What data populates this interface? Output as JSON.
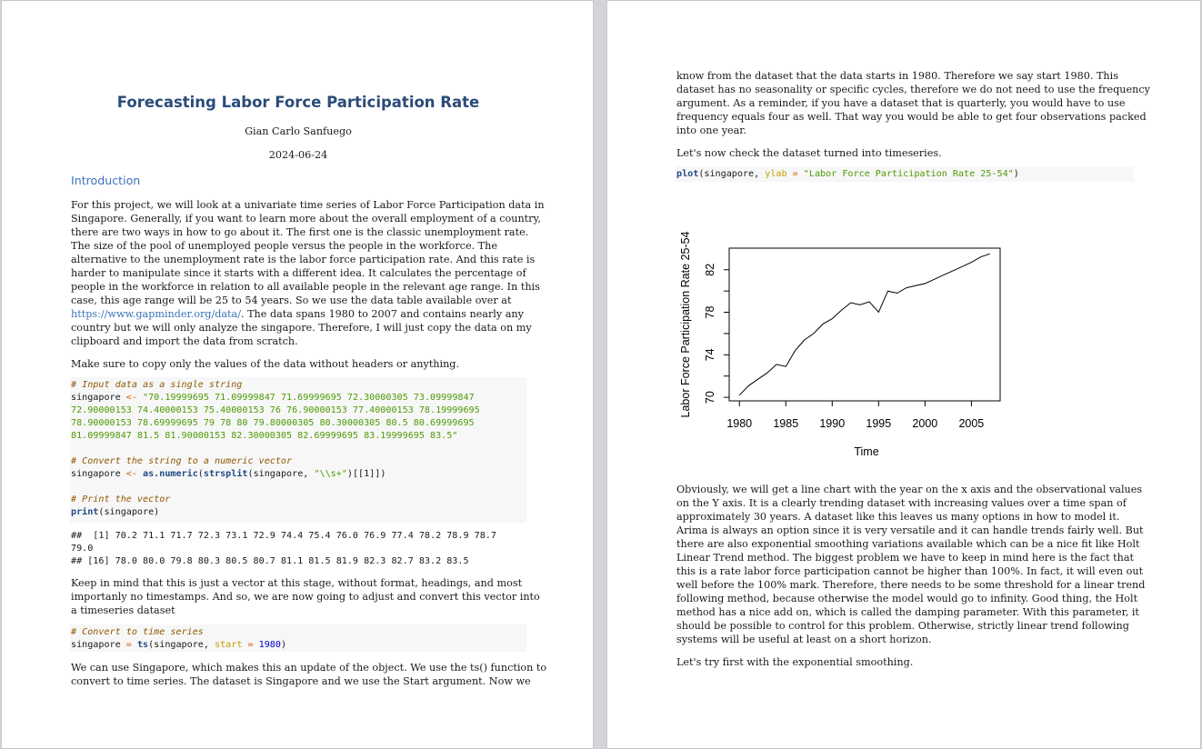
{
  "document": {
    "title": "Forecasting Labor Force Participation Rate",
    "author": "Gian Carlo Sanfuego",
    "date": "2024-06-24",
    "section_heading": "Introduction",
    "intro_lines": [
      "For this project, we will look at a univariate time series of Labor Force Participation data in",
      "Singapore. Generally, if you want to learn more about the overall employment of a country,",
      "there are two ways in how to go about it. The first one is the classic unemployment rate.",
      "The size of the pool of unemployed people versus the people in the workforce. The",
      "alternative to the unemployment rate is the labor force participation rate. And this rate is",
      "harder to manipulate since it starts with a different idea. It calculates the percentage of",
      "people in the workforce in relation to all available people in the relevant age range. In this",
      "case, this age range will be 25 to 54 years. So we use the data table available over at"
    ],
    "link_text": "https://www.gapminder.org/data/",
    "link_line_rest": ". The data spans 1980 to 2007 and contains nearly any",
    "intro_lines_after": [
      "country but we will only analyze the singapore. Therefore, I will just copy the data on my",
      "clipboard and import the data from scratch."
    ],
    "copy_instruction": "Make sure to copy only the values of the data without headers or anything.",
    "code1": {
      "comment_input": "# Input data as a single string",
      "assign_var": "singapore",
      "assign_op": "<-",
      "string_lines": [
        "\"70.19999695 71.09999847 71.69999695 72.30000305 73.09999847",
        "72.90000153 74.40000153 75.40000153 76 76.90000153 77.40000153 78.19999695",
        "78.90000153 78.69999695 79 78 80 79.80000305 80.30000305 80.5 80.69999695",
        "81.09999847 81.5 81.90000153 82.30000305 82.69999695 83.19999695 83.5\""
      ],
      "comment_convert": "# Convert the string to a numeric vector",
      "conv_fn1": "as.numeric",
      "conv_fn2": "strsplit",
      "conv_arg": "(singapore, ",
      "conv_sep": "\"\\\\s+\"",
      "conv_end": ")[[1]])",
      "comment_print": "# Print the vector",
      "print_fn": "print",
      "print_arg": "(singapore)"
    },
    "output_lines": [
      "##  [1] 70.2 71.1 71.7 72.3 73.1 72.9 74.4 75.4 76.0 76.9 77.4 78.2 78.9 78.7",
      "79.0",
      "## [16] 78.0 80.0 79.8 80.3 80.5 80.7 81.1 81.5 81.9 82.3 82.7 83.2 83.5"
    ],
    "vector_note_lines": [
      "Keep in mind that this is just a vector at this stage, without format, headings, and most",
      "importanly no timestamps. And so, we are now going to adjust and convert this vector into",
      "a timeseries dataset"
    ],
    "code2": {
      "comment": "# Convert to time series",
      "var": "singapore",
      "op": "=",
      "fn": "ts",
      "arg": "(singapore, ",
      "argname": "start",
      "num": "1980",
      "end": ")"
    },
    "ts_note_lines": [
      "We can use Singapore, which makes this an update of the object. We use the ts() function to",
      "convert to time series. The dataset is Singapore and we use the Start argument. Now we"
    ],
    "page2_lines": [
      "know from the dataset that the data starts in 1980. Therefore we say start 1980. This",
      "dataset has no seasonality or specific cycles, therefore we do not need to use the frequency",
      "argument. As a reminder, if you have a dataset that is quarterly, you would have to use",
      "frequency equals four as well. That way you would be able to get four observations packed",
      "into one year."
    ],
    "check_line": "Let's now check the dataset turned into timeseries.",
    "code3": {
      "fn": "plot",
      "arg": "(singapore, ",
      "argname": "ylab",
      "op": "=",
      "str": "\"Labor Force Participation Rate 25-54\"",
      "end": ")"
    },
    "analysis_lines": [
      "Obviously, we will get a line chart with the year on the x axis and the observational values",
      "on the Y axis. It is a clearly trending dataset with increasing values over a time span of",
      "approximately 30 years. A dataset like this leaves us many options in how to model it.",
      "Arima is always an option since it is very versatile and it can handle trends fairly well. But",
      "there are also exponential smoothing variations available which can be a nice fit like Holt",
      "Linear Trend method. The biggest problem we have to keep in mind here is the fact that",
      "this is a rate labor force participation cannot be higher than 100%. In fact, it will even out",
      "well before the 100% mark. Therefore, there needs to be some threshold for a linear trend",
      "following method, because otherwise the model would go to infinity. Good thing, the Holt",
      "method has a nice add on, which is called the damping parameter. With this parameter, it",
      "should be possible to control for this problem. Otherwise, strictly linear trend following",
      "systems will be useful at least on a short horizon."
    ],
    "final_line": "Let's try first with the exponential smoothing."
  },
  "chart_data": {
    "type": "line",
    "xlabel": "Time",
    "ylabel": "Labor Force Participation Rate 25-54",
    "x": [
      1980,
      1981,
      1982,
      1983,
      1984,
      1985,
      1986,
      1987,
      1988,
      1989,
      1990,
      1991,
      1992,
      1993,
      1994,
      1995,
      1996,
      1997,
      1998,
      1999,
      2000,
      2001,
      2002,
      2003,
      2004,
      2005,
      2006,
      2007
    ],
    "values": [
      70.2,
      71.1,
      71.7,
      72.3,
      73.1,
      72.9,
      74.4,
      75.4,
      76.0,
      76.9,
      77.4,
      78.2,
      78.9,
      78.7,
      79.0,
      78.0,
      80.0,
      79.8,
      80.3,
      80.5,
      80.7,
      81.1,
      81.5,
      81.9,
      82.3,
      82.7,
      83.2,
      83.5
    ],
    "xticks": [
      "1980",
      "1985",
      "1990",
      "1995",
      "2000",
      "2005"
    ],
    "yticks": [
      "70",
      "74",
      "78",
      "82"
    ],
    "xlim": [
      1978.9,
      2008.1
    ],
    "ylim": [
      69.668,
      84.032
    ],
    "line_color": "#000000"
  }
}
